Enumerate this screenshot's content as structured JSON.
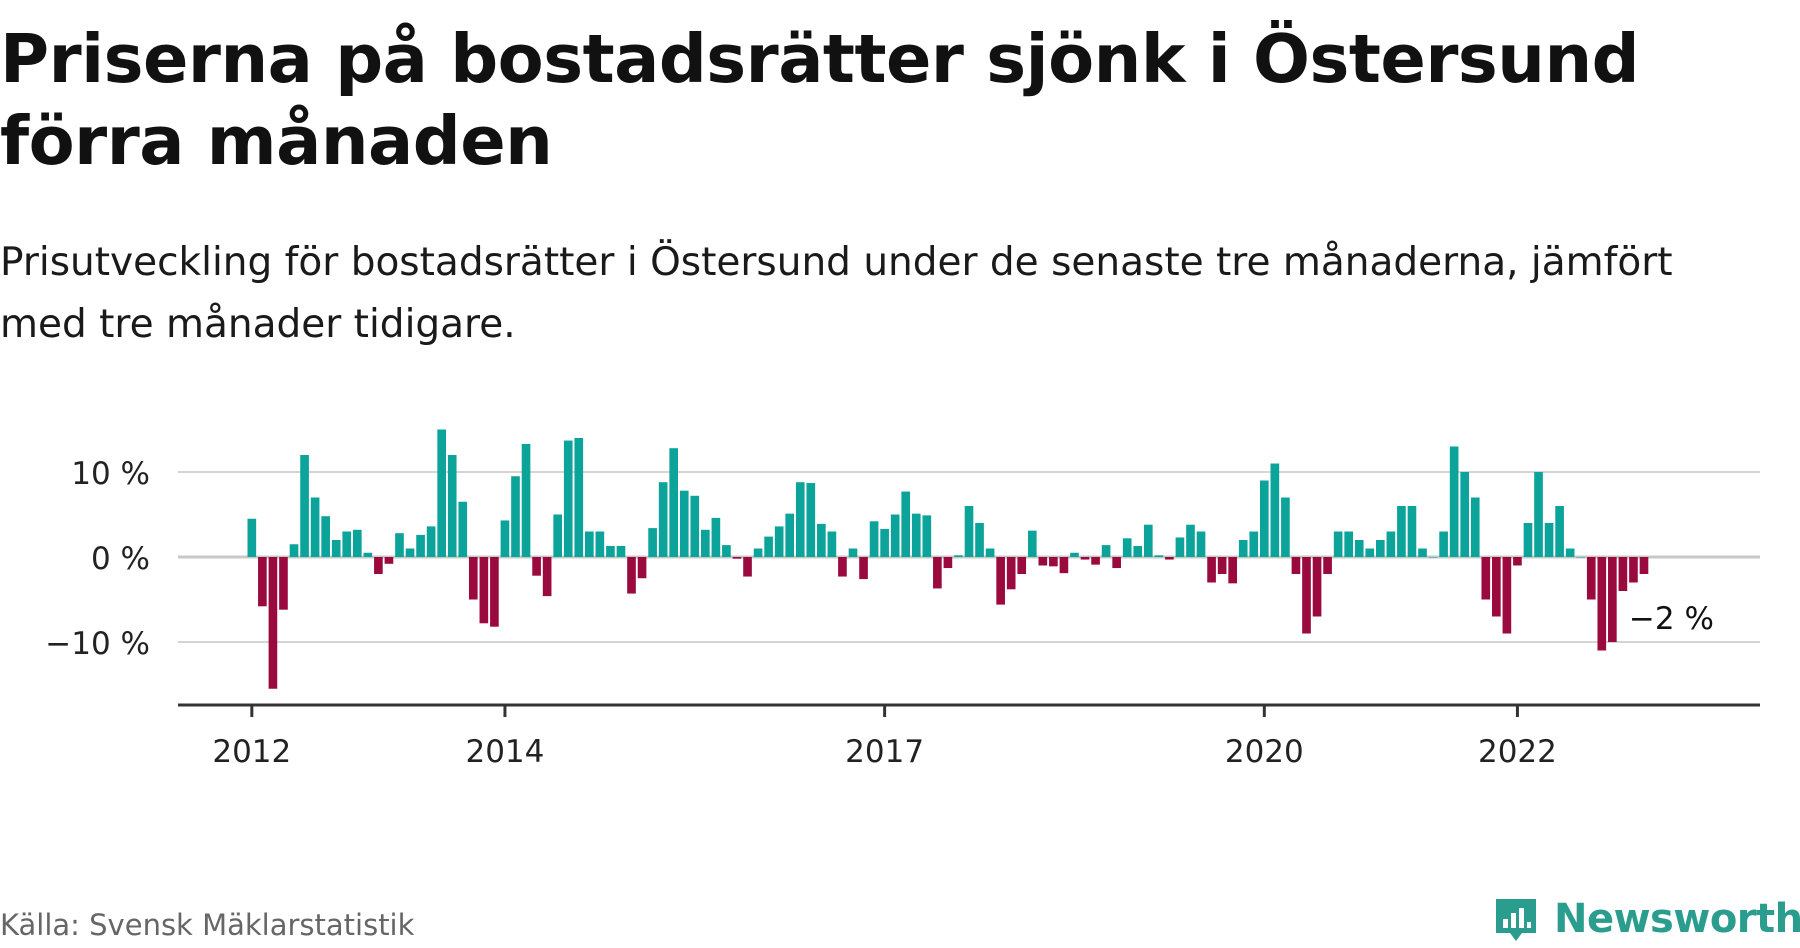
{
  "header": {
    "title": "Priserna på bostadsrätter sjönk i Östersund förra månaden",
    "subtitle": "Prisutveckling för bostadsrätter i Östersund under de senaste tre månaderna, jämfört med tre månader tidigare."
  },
  "footer": {
    "source": "Källa: Svensk Mäklarstatistik",
    "brand": "Newsworthy"
  },
  "colors": {
    "positive": "#0ca39b",
    "negative": "#9a0a3f",
    "grid": "#d4d4d4",
    "axis": "#333333",
    "brand": "#2a9d8f"
  },
  "chart_data": {
    "type": "bar",
    "y_tick_labels": [
      "10 %",
      "0 %",
      "−10 %"
    ],
    "y_ticks": [
      10,
      0,
      -10
    ],
    "ylim": [
      -17,
      17
    ],
    "x_tick_labels": [
      "2012",
      "2014",
      "2017",
      "2020",
      "2022"
    ],
    "x_ticks": [
      "2012-01",
      "2014-01",
      "2017-01",
      "2020-01",
      "2022-01"
    ],
    "xlim": [
      "2011-06",
      "2023-12"
    ],
    "grid": true,
    "annotation": {
      "label": "−2 %",
      "x": "2022-11",
      "value": -2
    },
    "series": [
      {
        "start": "2012-01",
        "frequency": "monthly",
        "values": [
          4.5,
          -5.8,
          -15.5,
          -6.2,
          1.5,
          12.0,
          7.0,
          4.8,
          2.0,
          3.0,
          3.2,
          0.5,
          -2.0,
          -0.8,
          2.8,
          1.0,
          2.6,
          3.6,
          15.0,
          12.0,
          6.5,
          -5.0,
          -7.8,
          -8.2,
          4.3,
          9.5,
          13.3,
          -2.2,
          -4.6,
          5.0,
          13.7,
          14.0,
          3.0,
          3.0,
          1.3,
          1.3,
          -4.3,
          -2.5,
          3.4,
          8.8,
          12.8,
          7.8,
          7.2,
          3.2,
          4.6,
          1.4,
          -0.2,
          -2.3,
          1.0,
          2.4,
          3.6,
          5.1,
          8.8,
          8.7,
          3.9,
          3.0,
          -2.3,
          1.0,
          -2.6,
          4.2,
          3.3,
          5.0,
          7.7,
          5.1,
          4.9,
          -3.7,
          -1.3,
          0.2,
          6.0,
          4.0,
          1.0,
          -5.6,
          -3.8,
          -2.0,
          3.1,
          -1.0,
          -1.1,
          -1.9,
          0.5,
          -0.3,
          -0.9,
          1.4,
          -1.3,
          2.2,
          1.3,
          3.8,
          0.2,
          -0.3,
          2.3,
          3.8,
          3.0,
          -3.0,
          -2.0,
          -3.1,
          2.0,
          3.0,
          9.0,
          11.0,
          7.0,
          -2.0,
          -9.0,
          -7.0,
          -2.0,
          3.0,
          3.0,
          2.0,
          1.0,
          2.0,
          3.0,
          6.0,
          6.0,
          1.0,
          0.0,
          3.0,
          13.0,
          10.0,
          7.0,
          -5.0,
          -7.0,
          -9.0,
          -1.0,
          4.0,
          10.0,
          4.0,
          6.0,
          1.0,
          0.0,
          -5.0,
          -11.0,
          -10.0,
          -4.0,
          -3.0,
          -2.0
        ]
      }
    ]
  }
}
